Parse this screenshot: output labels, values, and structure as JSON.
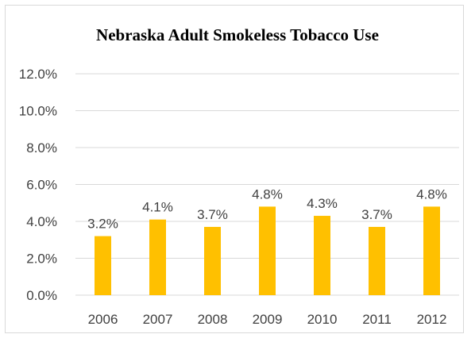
{
  "chart_data": {
    "type": "bar",
    "title": "Nebraska Adult Smokeless Tobacco Use",
    "xlabel": "",
    "ylabel": "",
    "categories": [
      "2006",
      "2007",
      "2008",
      "2009",
      "2010",
      "2011",
      "2012"
    ],
    "values": [
      3.2,
      4.1,
      3.7,
      4.8,
      4.3,
      3.7,
      4.8
    ],
    "data_labels": [
      "3.2%",
      "4.1%",
      "3.7%",
      "4.8%",
      "4.3%",
      "3.7%",
      "4.8%"
    ],
    "ylim": [
      0,
      12
    ],
    "y_ticks": [
      0,
      2,
      4,
      6,
      8,
      10,
      12
    ],
    "y_tick_labels": [
      "0.0%",
      "2.0%",
      "4.0%",
      "6.0%",
      "8.0%",
      "10.0%",
      "12.0%"
    ],
    "grid": true,
    "legend": "none",
    "bar_color": "#FFC000",
    "grid_color": "#D9D9D9"
  }
}
